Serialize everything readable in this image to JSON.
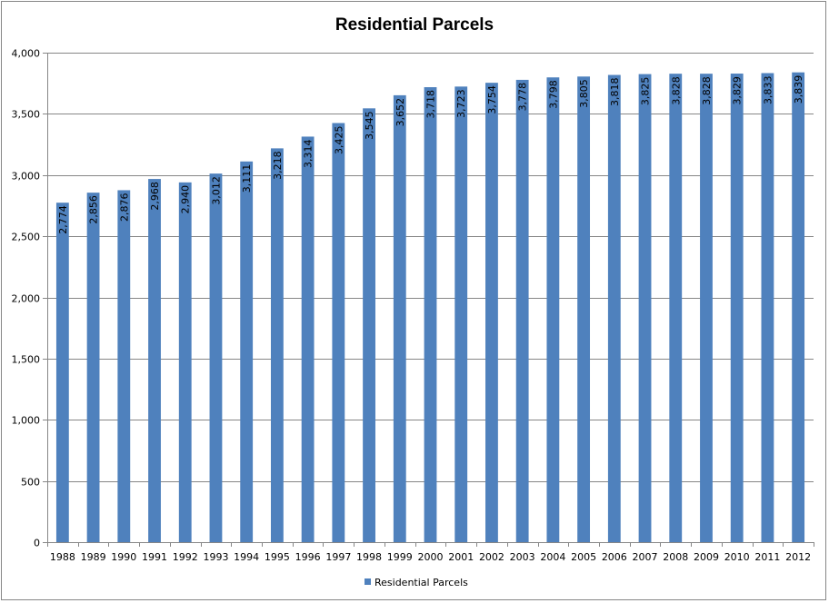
{
  "chart_data": {
    "type": "bar",
    "title": "Residential Parcels",
    "xlabel": "",
    "ylabel": "",
    "ylim": [
      0,
      4000
    ],
    "y_ticks": [
      "0",
      "500",
      "1,000",
      "1,500",
      "2,000",
      "2,500",
      "3,000",
      "3,500",
      "4,000"
    ],
    "y_tick_values": [
      0,
      500,
      1000,
      1500,
      2000,
      2500,
      3000,
      3500,
      4000
    ],
    "categories": [
      "1988",
      "1989",
      "1990",
      "1991",
      "1992",
      "1993",
      "1994",
      "1995",
      "1996",
      "1997",
      "1998",
      "1999",
      "2000",
      "2001",
      "2002",
      "2003",
      "2004",
      "2005",
      "2006",
      "2007",
      "2008",
      "2009",
      "2010",
      "2011",
      "2012"
    ],
    "series": [
      {
        "name": "Residential Parcels",
        "values": [
          2774,
          2856,
          2876,
          2968,
          2940,
          3012,
          3111,
          3218,
          3314,
          3425,
          3545,
          3652,
          3718,
          3723,
          3754,
          3778,
          3798,
          3805,
          3818,
          3825,
          3828,
          3828,
          3829,
          3833,
          3839
        ],
        "labels": [
          "2,774",
          "2,856",
          "2,876",
          "2,968",
          "2,940",
          "3,012",
          "3,111",
          "3,218",
          "3,314",
          "3,425",
          "3,545",
          "3,652",
          "3,718",
          "3,723",
          "3,754",
          "3,778",
          "3,798",
          "3,805",
          "3,818",
          "3,825",
          "3,828",
          "3,828",
          "3,829",
          "3,833",
          "3,839"
        ]
      }
    ],
    "bar_color": "#4F81BD",
    "grid": true,
    "legend_position": "bottom",
    "data_labels": "inside-end-rotated"
  }
}
